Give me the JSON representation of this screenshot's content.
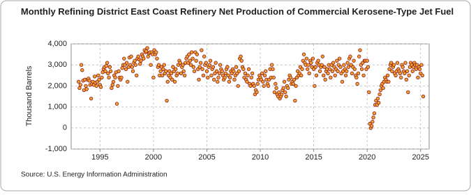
{
  "chart_data": {
    "type": "scatter",
    "title": "Monthly Refining District East Coast Refinery Net Production of Commercial Kerosene-Type Jet Fuel",
    "ylabel": "Thousand Barrels",
    "source": "Source: U.S. Energy Information Administration",
    "color": "#f0a030",
    "edgecolor": "#8b1a1a",
    "grid": true,
    "xlim": [
      1992.3,
      2025.8
    ],
    "xticks": [
      1995,
      2000,
      2005,
      2010,
      2015,
      2020,
      2025
    ],
    "ylim": [
      -1000,
      4000
    ],
    "yticks": [
      {
        "value": -1000,
        "label": "-1,000"
      },
      0,
      {
        "value": 1000,
        "label": "1,000"
      },
      {
        "value": 2000,
        "label": "2,000"
      },
      {
        "value": 3000,
        "label": "3,000"
      },
      {
        "value": 4000,
        "label": "4,000"
      }
    ],
    "x": [
      1993.0,
      1993.08,
      1993.17,
      1993.25,
      1993.33,
      1993.42,
      1993.5,
      1993.58,
      1993.67,
      1993.75,
      1993.83,
      1993.92,
      1994.0,
      1994.08,
      1994.17,
      1994.25,
      1994.33,
      1994.42,
      1994.5,
      1994.58,
      1994.67,
      1994.75,
      1994.83,
      1994.92,
      1995.0,
      1995.08,
      1995.17,
      1995.25,
      1995.33,
      1995.42,
      1995.5,
      1995.58,
      1995.67,
      1995.75,
      1995.83,
      1995.92,
      1996.0,
      1996.08,
      1996.17,
      1996.25,
      1996.33,
      1996.42,
      1996.5,
      1996.58,
      1996.67,
      1996.75,
      1996.83,
      1996.92,
      1997.0,
      1997.08,
      1997.17,
      1997.25,
      1997.33,
      1997.42,
      1997.5,
      1997.58,
      1997.67,
      1997.75,
      1997.83,
      1997.92,
      1998.0,
      1998.08,
      1998.17,
      1998.25,
      1998.33,
      1998.42,
      1998.5,
      1998.58,
      1998.67,
      1998.75,
      1998.83,
      1998.92,
      1999.0,
      1999.08,
      1999.17,
      1999.25,
      1999.33,
      1999.42,
      1999.5,
      1999.58,
      1999.67,
      1999.75,
      1999.83,
      1999.92,
      2000.0,
      2000.08,
      2000.17,
      2000.25,
      2000.33,
      2000.42,
      2000.5,
      2000.58,
      2000.67,
      2000.75,
      2000.83,
      2000.92,
      2001.0,
      2001.08,
      2001.17,
      2001.25,
      2001.33,
      2001.42,
      2001.5,
      2001.58,
      2001.67,
      2001.75,
      2001.83,
      2001.92,
      2002.0,
      2002.08,
      2002.17,
      2002.25,
      2002.33,
      2002.42,
      2002.5,
      2002.58,
      2002.67,
      2002.75,
      2002.83,
      2002.92,
      2003.0,
      2003.08,
      2003.17,
      2003.25,
      2003.33,
      2003.42,
      2003.5,
      2003.58,
      2003.67,
      2003.75,
      2003.83,
      2003.92,
      2004.0,
      2004.08,
      2004.17,
      2004.25,
      2004.33,
      2004.42,
      2004.5,
      2004.58,
      2004.67,
      2004.75,
      2004.83,
      2004.92,
      2005.0,
      2005.08,
      2005.17,
      2005.25,
      2005.33,
      2005.42,
      2005.5,
      2005.58,
      2005.67,
      2005.75,
      2005.83,
      2005.92,
      2006.0,
      2006.08,
      2006.17,
      2006.25,
      2006.33,
      2006.42,
      2006.5,
      2006.58,
      2006.67,
      2006.75,
      2006.83,
      2006.92,
      2007.0,
      2007.08,
      2007.17,
      2007.25,
      2007.33,
      2007.42,
      2007.5,
      2007.58,
      2007.67,
      2007.75,
      2007.83,
      2007.92,
      2008.0,
      2008.08,
      2008.17,
      2008.25,
      2008.33,
      2008.42,
      2008.5,
      2008.58,
      2008.67,
      2008.75,
      2008.83,
      2008.92,
      2009.0,
      2009.08,
      2009.17,
      2009.25,
      2009.33,
      2009.42,
      2009.5,
      2009.58,
      2009.67,
      2009.75,
      2009.83,
      2009.92,
      2010.0,
      2010.08,
      2010.17,
      2010.25,
      2010.33,
      2010.42,
      2010.5,
      2010.58,
      2010.67,
      2010.75,
      2010.83,
      2010.92,
      2011.0,
      2011.08,
      2011.17,
      2011.25,
      2011.33,
      2011.42,
      2011.5,
      2011.58,
      2011.67,
      2011.75,
      2011.83,
      2011.92,
      2012.0,
      2012.08,
      2012.17,
      2012.25,
      2012.33,
      2012.42,
      2012.5,
      2012.58,
      2012.67,
      2012.75,
      2012.83,
      2012.92,
      2013.0,
      2013.08,
      2013.17,
      2013.25,
      2013.33,
      2013.42,
      2013.5,
      2013.58,
      2013.67,
      2013.75,
      2013.83,
      2013.92,
      2014.0,
      2014.08,
      2014.17,
      2014.25,
      2014.33,
      2014.42,
      2014.5,
      2014.58,
      2014.67,
      2014.75,
      2014.83,
      2014.92,
      2015.0,
      2015.08,
      2015.17,
      2015.25,
      2015.33,
      2015.42,
      2015.5,
      2015.58,
      2015.67,
      2015.75,
      2015.83,
      2015.92,
      2016.0,
      2016.08,
      2016.17,
      2016.25,
      2016.33,
      2016.42,
      2016.5,
      2016.58,
      2016.67,
      2016.75,
      2016.83,
      2016.92,
      2017.0,
      2017.08,
      2017.17,
      2017.25,
      2017.33,
      2017.42,
      2017.5,
      2017.58,
      2017.67,
      2017.75,
      2017.83,
      2017.92,
      2018.0,
      2018.08,
      2018.17,
      2018.25,
      2018.33,
      2018.42,
      2018.5,
      2018.58,
      2018.67,
      2018.75,
      2018.83,
      2018.92,
      2019.0,
      2019.08,
      2019.17,
      2019.25,
      2019.33,
      2019.42,
      2019.5,
      2019.58,
      2019.67,
      2019.75,
      2019.83,
      2019.92,
      2020.0,
      2020.08,
      2020.17,
      2020.25,
      2020.33,
      2020.42,
      2020.5,
      2020.58,
      2020.67,
      2020.75,
      2020.83,
      2020.92,
      2021.0,
      2021.08,
      2021.17,
      2021.25,
      2021.33,
      2021.42,
      2021.5,
      2021.58,
      2021.67,
      2021.75,
      2021.83,
      2021.92,
      2022.0,
      2022.08,
      2022.17,
      2022.25,
      2022.33,
      2022.42,
      2022.5,
      2022.58,
      2022.67,
      2022.75,
      2022.83,
      2022.92,
      2023.0,
      2023.08,
      2023.17,
      2023.25,
      2023.33,
      2023.42,
      2023.5,
      2023.58,
      2023.67,
      2023.75,
      2023.83,
      2023.92,
      2024.0,
      2024.08,
      2024.17,
      2024.25,
      2024.33,
      2024.42,
      2024.5,
      2024.58,
      2024.67,
      2024.75,
      2024.83,
      2024.92,
      2025.0,
      2025.08,
      2025.17,
      2025.25
    ],
    "values": [
      2200,
      1900,
      2050,
      3000,
      2750,
      2250,
      1800,
      2300,
      2000,
      1850,
      2300,
      2350,
      2250,
      2050,
      1400,
      2100,
      2200,
      2050,
      2450,
      2150,
      2000,
      2200,
      2500,
      2300,
      2050,
      1950,
      2400,
      2650,
      2800,
      2900,
      2700,
      2950,
      3100,
      2600,
      2400,
      2900,
      2700,
      1900,
      2050,
      2200,
      2500,
      2400,
      2650,
      1150,
      2000,
      2700,
      2400,
      2300,
      2400,
      2850,
      3000,
      3300,
      3000,
      2800,
      3100,
      2200,
      2900,
      3350,
      3000,
      3400,
      2900,
      2700,
      3100,
      3200,
      3000,
      2500,
      3300,
      3400,
      3250,
      3050,
      3200,
      3500,
      3400,
      3300,
      3700,
      3600,
      3650,
      3800,
      3400,
      3550,
      3600,
      3000,
      3600,
      3500,
      2400,
      3700,
      3500,
      3600,
      3300,
      2900,
      3000,
      2500,
      2700,
      2900,
      2500,
      2800,
      3000,
      2600,
      2700,
      1300,
      2200,
      2500,
      2700,
      2400,
      2600,
      2300,
      2900,
      2700,
      2200,
      2800,
      2500,
      2600,
      3000,
      3200,
      3100,
      2600,
      2900,
      3000,
      2700,
      2500,
      3100,
      3300,
      3400,
      3100,
      3500,
      3200,
      3000,
      3600,
      3300,
      2900,
      2700,
      3600,
      3200,
      3500,
      2800,
      2300,
      2900,
      3100,
      3700,
      2800,
      2500,
      3400,
      3000,
      3100,
      2700,
      2400,
      2900,
      3000,
      3200,
      2500,
      2800,
      2900,
      2300,
      2600,
      3100,
      2700,
      2200,
      2400,
      2600,
      3000,
      2800,
      2700,
      2500,
      2300,
      2400,
      2600,
      2800,
      2900,
      2500,
      2200,
      2400,
      2700,
      2600,
      2800,
      2700,
      2300,
      2500,
      2900,
      2600,
      2000,
      2700,
      3300,
      3400,
      3200,
      2900,
      2800,
      2400,
      2600,
      2300,
      2200,
      2500,
      2800,
      2100,
      2000,
      2400,
      2600,
      2100,
      2000,
      1600,
      1800,
      1700,
      2100,
      2300,
      2500,
      2400,
      2300,
      2600,
      2200,
      2000,
      2500,
      2700,
      2300,
      2100,
      2000,
      2300,
      2800,
      2400,
      3000,
      2800,
      2400,
      1700,
      2100,
      1900,
      1600,
      1500,
      1700,
      1400,
      1500,
      1600,
      1800,
      1900,
      2200,
      1700,
      1500,
      2000,
      1900,
      2300,
      2500,
      2400,
      2100,
      2200,
      2100,
      2300,
      1300,
      2000,
      2400,
      2700,
      2500,
      2600,
      2900,
      2500,
      2800,
      3200,
      3500,
      3100,
      3000,
      3300,
      2800,
      3000,
      2600,
      3200,
      3100,
      2900,
      3300,
      2800,
      2000,
      2900,
      2500,
      3100,
      3200,
      3000,
      2700,
      2900,
      3000,
      3400,
      2500,
      2900,
      2300,
      2700,
      2800,
      2600,
      3000,
      2800,
      2400,
      3000,
      2700,
      3100,
      2900,
      2500,
      2800,
      3200,
      2700,
      3000,
      3300,
      2900,
      2600,
      2200,
      2700,
      3000,
      2800,
      2500,
      2700,
      3100,
      2900,
      3300,
      3400,
      3000,
      2600,
      2900,
      3200,
      2800,
      2500,
      2400,
      2100,
      2600,
      3400,
      3700,
      3000,
      2800,
      3100,
      2500,
      3200,
      3200,
      2800,
      3200,
      2900,
      1700,
      200,
      0,
      100,
      300,
      500,
      700,
      1100,
      1300,
      1100,
      1400,
      1200,
      1600,
      1800,
      2000,
      2100,
      1900,
      2200,
      2400,
      2300,
      2200,
      2500,
      2200,
      2800,
      3000,
      3100,
      2700,
      2900,
      3000,
      2600,
      2500,
      2700,
      3100,
      2800,
      2700,
      2600,
      2400,
      3000,
      2900,
      2700,
      2600,
      3100,
      2300,
      2700,
      1700,
      2500,
      2900,
      3100,
      3000,
      2700,
      2900,
      3100,
      3000,
      2800,
      3000,
      2400,
      2900,
      2800,
      2600,
      3000,
      2500,
      1500
    ]
  }
}
